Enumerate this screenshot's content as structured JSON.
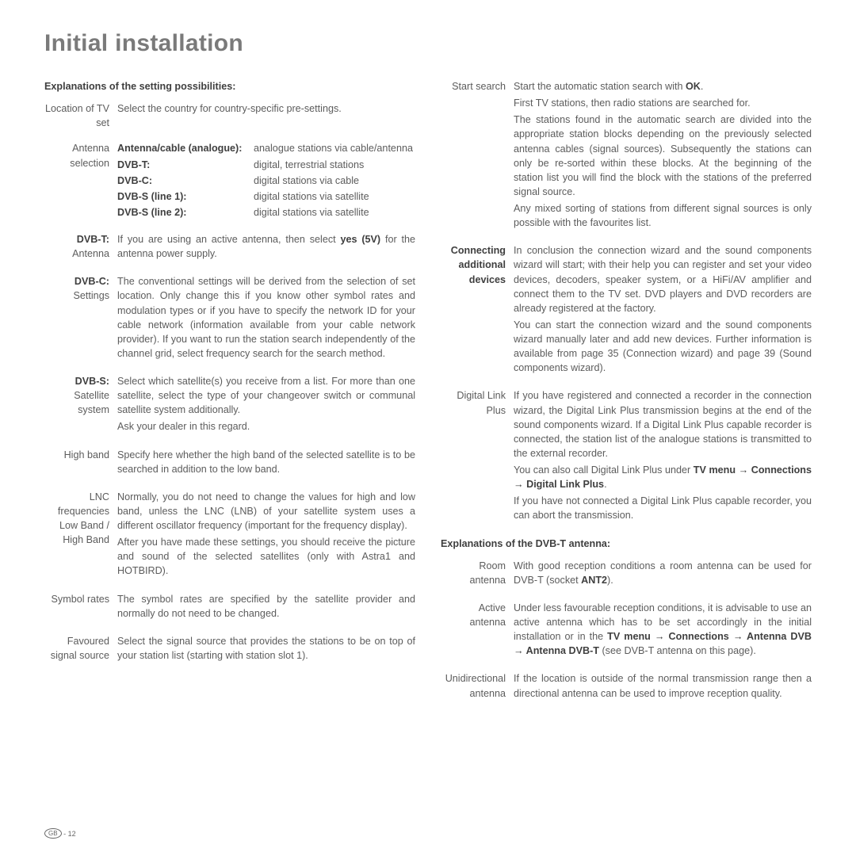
{
  "title": "Initial installation",
  "left": {
    "heading": "Explanations of the setting possibilities:",
    "location": {
      "label": "Location of TV set",
      "body": "Select the country for country-specific pre-settings."
    },
    "antenna": {
      "label": "Antenna selection",
      "rows": [
        {
          "k": "Antenna/cable (analogue):",
          "kb": true,
          "v": "analogue stations via cable/antenna"
        },
        {
          "k": "DVB-T:",
          "kb": true,
          "v": "digital, terrestrial stations"
        },
        {
          "k": "DVB-C:",
          "kb": true,
          "v": "digital stations via cable"
        },
        {
          "k": "DVB-S (line 1):",
          "kb": true,
          "v": "digital stations via satellite"
        },
        {
          "k": "DVB-S (line 2):",
          "kb": true,
          "v": "digital stations via satellite"
        }
      ]
    },
    "dvbt": {
      "label": "DVB-T: Antenna",
      "body": "If you are using an active antenna, then select <b>yes (5V)</b> for the antenna power supply."
    },
    "dvbc": {
      "label": "DVB-C: Settings",
      "body": "The conventional settings will be derived from the selection of set location. Only change this if you know other symbol rates and modulation types or if you have to specify the network ID for your cable network (information available from your cable network provider). If you want to run the station search independently of the channel grid, select frequency search for the search method."
    },
    "dvbs": {
      "label": "DVB-S: Satellite system",
      "body": "Select which satellite(s) you receive from a list. For more than one satellite, select the type of your changeover switch or communal satellite system additionally.<br>Ask your dealer in this regard."
    },
    "highband": {
      "label": "High band",
      "body": "Specify here whether the high band of the selected satellite is to be searched in addition to the low band."
    },
    "lnc": {
      "label": "LNC frequencies Low Band / High Band",
      "body": "Normally, you do not need to change the values for high and low band, unless the LNC (LNB) of your satellite system uses a different oscillator frequency (important for the frequency display).<br>After you have made these settings, you should receive the picture and sound of the selected satellites (only with Astra1 and HOTBIRD)."
    },
    "symbol": {
      "label": "Symbol rates",
      "body": "The symbol rates are specified by the satellite provider and normally do not need to be changed."
    },
    "favoured": {
      "label": "Favoured signal source",
      "body": "Select the signal source that provides the stations to be on top of your station list (starting with station slot 1)."
    }
  },
  "right": {
    "start": {
      "label": "Start search",
      "body": "Start the automatic station search with <b>OK</b>.<br>First TV stations, then radio stations are searched for.<br>The stations found in the automatic search are divided into the appropriate station blocks depending on the previously selected antenna cables (signal sources). Subsequently the stations can only be re-sorted within these blocks. At the beginning of the station list you will find the block with the stations of the preferred signal source.<br>Any mixed sorting of stations from different signal sources is only possible with the favourites list."
    },
    "connect": {
      "label": "Connecting additional devices",
      "body": "In conclusion the connection wizard and the sound components wizard will start; with their help you can register and set your video devices, decoders, speaker system, or a HiFi/AV amplifier and connect them to the TV set. DVD players and DVD recorders are already registered at the factory.<br>You can start the connection wizard and the sound components wizard manually later and add new devices. Further information is available from page 35 (Connection wizard) and page 39 (Sound components wizard)."
    },
    "dlp": {
      "label": "Digital Link Plus",
      "body": "If you have registered and connected a recorder in the connection wizard, the Digital Link Plus transmission begins at the end of the sound components wizard. If a Digital Link Plus capable recorder is connected, the station list of the analogue stations is transmitted to the external recorder.<br>You can also call Digital Link Plus under <b>TV menu → Connections → Digital Link Plus</b>.<br>If you have not connected a Digital Link Plus capable recorder, you can abort the transmission."
    },
    "heading2": "Explanations of the DVB-T antenna:",
    "room": {
      "label": "Room antenna",
      "body": "With good reception conditions a room antenna can be used for DVB-T (socket <b>ANT2</b>)."
    },
    "active": {
      "label": "Active antenna",
      "body": "Under less favourable reception conditions, it is advisable to use an active antenna which has to be set accordingly in the initial installation or in the <b>TV menu → Connections → Antenna DVB → Antenna DVB-T</b> (see DVB-T antenna on this page)."
    },
    "uni": {
      "label": "Unidirectional antenna",
      "body": "If the location is outside of the normal transmission range then a directional antenna can be used to improve reception quality."
    }
  },
  "footer": {
    "region": "GB",
    "page": "- 12"
  }
}
